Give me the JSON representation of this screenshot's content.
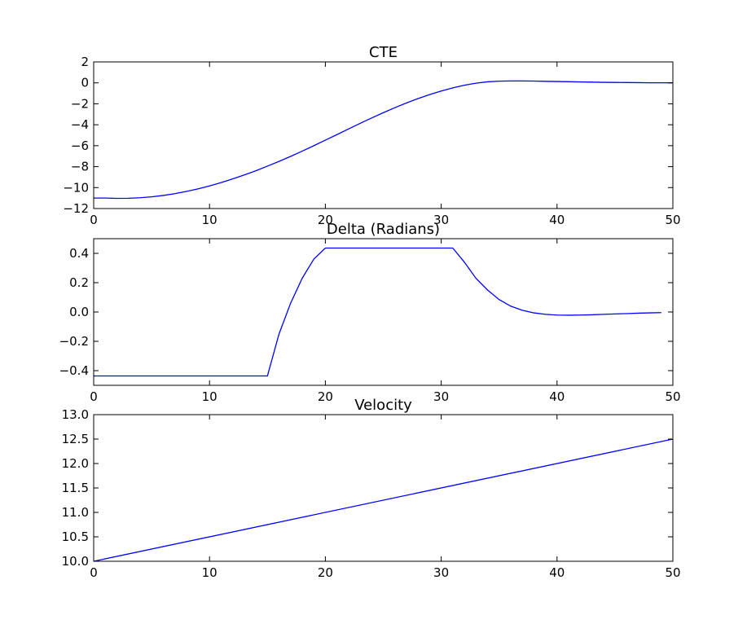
{
  "chart_data": [
    {
      "type": "line",
      "title": "CTE",
      "xlabel": "",
      "ylabel": "",
      "xlim": [
        0,
        50
      ],
      "ylim": [
        -12,
        2
      ],
      "x_ticks": [
        0,
        10,
        20,
        30,
        40,
        50
      ],
      "y_ticks": [
        -12,
        -10,
        -8,
        -6,
        -4,
        -2,
        0,
        2
      ],
      "x_tick_labels": [
        "0",
        "10",
        "20",
        "30",
        "40",
        "50"
      ],
      "y_tick_labels": [
        "−12",
        "−10",
        "−8",
        "−6",
        "−4",
        "−2",
        "0",
        "2"
      ],
      "grid": false,
      "color": "#0000ff",
      "series": [
        {
          "x": [
            0,
            1,
            2,
            3,
            4,
            5,
            6,
            7,
            8,
            9,
            10,
            11,
            12,
            13,
            14,
            15,
            16,
            17,
            18,
            19,
            20,
            21,
            22,
            23,
            24,
            25,
            26,
            27,
            28,
            29,
            30,
            31,
            32,
            33,
            34,
            35,
            36,
            37,
            38,
            39,
            40,
            41,
            42,
            43,
            44,
            45,
            46,
            47,
            48,
            49,
            50
          ],
          "values": [
            -11.0,
            -11.0,
            -11.03,
            -11.02,
            -10.97,
            -10.88,
            -10.75,
            -10.58,
            -10.37,
            -10.12,
            -9.84,
            -9.52,
            -9.17,
            -8.79,
            -8.39,
            -7.95,
            -7.5,
            -7.02,
            -6.52,
            -6.0,
            -5.47,
            -4.94,
            -4.4,
            -3.87,
            -3.35,
            -2.85,
            -2.37,
            -1.92,
            -1.5,
            -1.12,
            -0.78,
            -0.48,
            -0.23,
            -0.03,
            0.1,
            0.16,
            0.18,
            0.18,
            0.17,
            0.15,
            0.13,
            0.11,
            0.09,
            0.07,
            0.05,
            0.04,
            0.03,
            0.02,
            0.01,
            0.01,
            0.0
          ]
        }
      ]
    },
    {
      "type": "line",
      "title": "Delta (Radians)",
      "xlabel": "",
      "ylabel": "",
      "xlim": [
        0,
        50
      ],
      "ylim": [
        -0.5,
        0.5
      ],
      "x_ticks": [
        0,
        10,
        20,
        30,
        40,
        50
      ],
      "y_ticks": [
        -0.4,
        -0.2,
        0.0,
        0.2,
        0.4
      ],
      "x_tick_labels": [
        "0",
        "10",
        "20",
        "30",
        "40",
        "50"
      ],
      "y_tick_labels": [
        "−0.4",
        "−0.2",
        "0.0",
        "0.2",
        "0.4"
      ],
      "grid": false,
      "color": "#0000ff",
      "series": [
        {
          "x": [
            0,
            1,
            2,
            3,
            4,
            5,
            6,
            7,
            8,
            9,
            10,
            11,
            12,
            13,
            14,
            15,
            16,
            17,
            18,
            19,
            20,
            21,
            22,
            23,
            24,
            25,
            26,
            27,
            28,
            29,
            30,
            31,
            32,
            33,
            34,
            35,
            36,
            37,
            38,
            39,
            40,
            41,
            42,
            43,
            44,
            45,
            46,
            47,
            48,
            49
          ],
          "values": [
            -0.436,
            -0.436,
            -0.436,
            -0.436,
            -0.436,
            -0.436,
            -0.436,
            -0.436,
            -0.436,
            -0.436,
            -0.436,
            -0.436,
            -0.436,
            -0.436,
            -0.436,
            -0.436,
            -0.15,
            0.06,
            0.23,
            0.36,
            0.436,
            0.436,
            0.436,
            0.436,
            0.436,
            0.436,
            0.436,
            0.436,
            0.436,
            0.436,
            0.436,
            0.436,
            0.34,
            0.23,
            0.15,
            0.085,
            0.04,
            0.012,
            -0.006,
            -0.016,
            -0.021,
            -0.022,
            -0.021,
            -0.019,
            -0.016,
            -0.013,
            -0.011,
            -0.008,
            -0.006,
            -0.004
          ]
        }
      ]
    },
    {
      "type": "line",
      "title": "Velocity",
      "xlabel": "",
      "ylabel": "",
      "xlim": [
        0,
        50
      ],
      "ylim": [
        10.0,
        13.0
      ],
      "x_ticks": [
        0,
        10,
        20,
        30,
        40,
        50
      ],
      "y_ticks": [
        10.0,
        10.5,
        11.0,
        11.5,
        12.0,
        12.5,
        13.0
      ],
      "x_tick_labels": [
        "0",
        "10",
        "20",
        "30",
        "40",
        "50"
      ],
      "y_tick_labels": [
        "10.0",
        "10.5",
        "11.0",
        "11.5",
        "12.0",
        "12.5",
        "13.0"
      ],
      "grid": false,
      "color": "#0000ff",
      "series": [
        {
          "x": [
            0,
            50
          ],
          "values": [
            10.0,
            12.5
          ]
        }
      ]
    }
  ]
}
